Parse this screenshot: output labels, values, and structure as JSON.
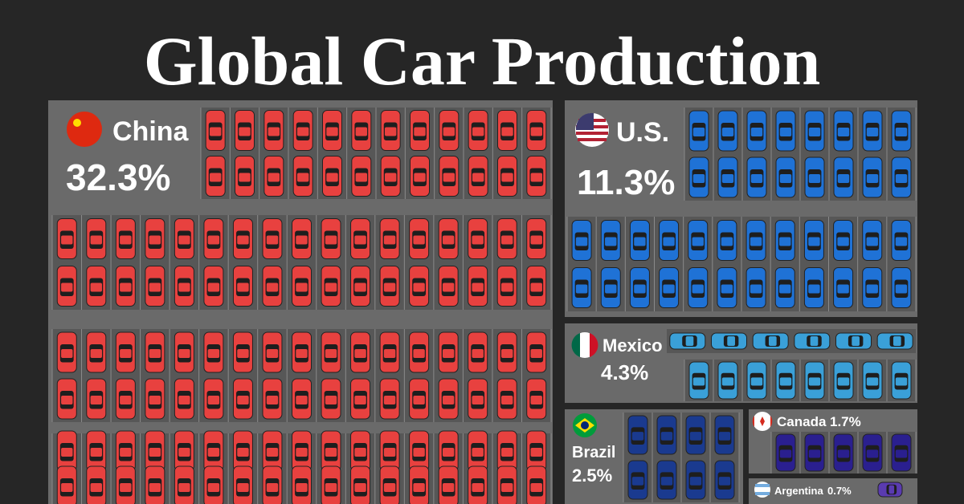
{
  "title": "Global Car Production",
  "countries": [
    {
      "name": "China",
      "share": "32.3%"
    },
    {
      "name": "U.S.",
      "share": "11.3%"
    },
    {
      "name": "Mexico",
      "share": "4.3%"
    },
    {
      "name": "Brazil",
      "share": "2.5%"
    },
    {
      "name": "Canada",
      "share": "1.7%"
    },
    {
      "name": "Argentina",
      "share": "0.7%"
    }
  ]
}
